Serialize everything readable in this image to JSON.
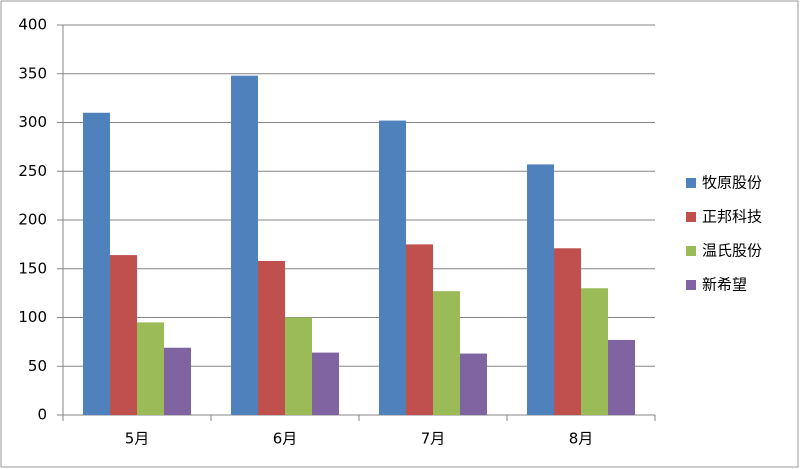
{
  "chart_data": {
    "type": "bar",
    "categories": [
      "5月",
      "6月",
      "7月",
      "8月"
    ],
    "series": [
      {
        "name": "牧原股份",
        "color": "#4f81bd",
        "values": [
          310,
          348,
          302,
          257
        ]
      },
      {
        "name": "正邦科技",
        "color": "#c0504d",
        "values": [
          164,
          158,
          175,
          171
        ]
      },
      {
        "name": "温氏股份",
        "color": "#9bbb59",
        "values": [
          95,
          100,
          127,
          130
        ]
      },
      {
        "name": "新希望",
        "color": "#8064a2",
        "values": [
          69,
          64,
          63,
          77
        ]
      }
    ],
    "ylim": [
      0,
      400
    ],
    "yticks": [
      0,
      50,
      100,
      150,
      200,
      250,
      300,
      350,
      400
    ],
    "grid": true,
    "legend": "right"
  }
}
